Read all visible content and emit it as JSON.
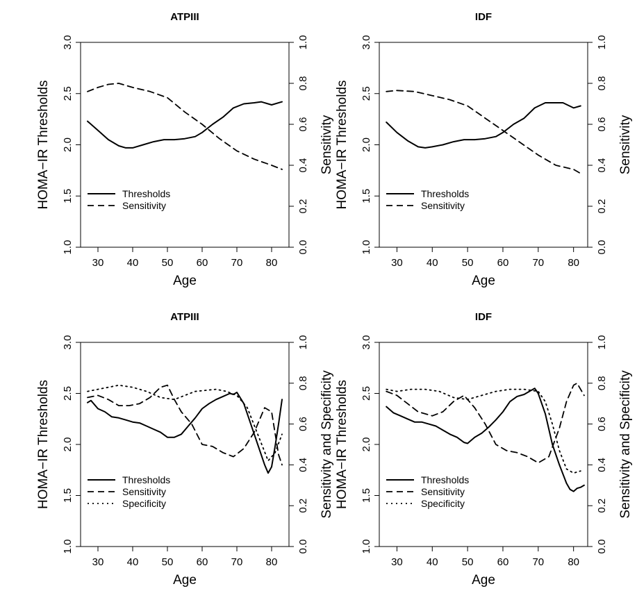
{
  "chart_data": [
    {
      "type": "line",
      "title": "ATPIII",
      "xlabel": "Age",
      "ylabel": "HOMA−IR Thresholds",
      "y2label": "Sensitivity",
      "xlim": [
        25,
        85
      ],
      "ylim": [
        1.0,
        3.0
      ],
      "y2lim": [
        0.0,
        1.0
      ],
      "xticks": [
        "30",
        "40",
        "50",
        "60",
        "70",
        "80"
      ],
      "yticks": [
        "1.0",
        "1.5",
        "2.0",
        "2.5",
        "3.0"
      ],
      "y2ticks": [
        "0.0",
        "0.2",
        "0.4",
        "0.6",
        "0.8",
        "1.0"
      ],
      "legend": "bottom-left",
      "grid": false,
      "series": [
        {
          "name": "Thresholds",
          "axis": "left",
          "style": "solid",
          "x": [
            27,
            30,
            33,
            36,
            38,
            40,
            43,
            46,
            49,
            52,
            55,
            58,
            60,
            63,
            66,
            69,
            72,
            75,
            77,
            80,
            83
          ],
          "y": [
            2.23,
            2.14,
            2.05,
            1.99,
            1.97,
            1.97,
            2.0,
            2.03,
            2.05,
            2.05,
            2.06,
            2.08,
            2.12,
            2.2,
            2.27,
            2.36,
            2.4,
            2.41,
            2.42,
            2.39,
            2.42
          ]
        },
        {
          "name": "Sensitivity",
          "axis": "right",
          "style": "dashed",
          "x": [
            27,
            30,
            33,
            36,
            40,
            45,
            50,
            55,
            60,
            65,
            70,
            75,
            80,
            83
          ],
          "y": [
            0.76,
            0.78,
            0.795,
            0.8,
            0.78,
            0.76,
            0.73,
            0.66,
            0.6,
            0.53,
            0.47,
            0.43,
            0.4,
            0.38
          ]
        }
      ]
    },
    {
      "type": "line",
      "title": "IDF",
      "xlabel": "Age",
      "ylabel": "HOMA−IR Thresholds",
      "y2label": "Sensitivity",
      "xlim": [
        25,
        84
      ],
      "ylim": [
        1.0,
        3.0
      ],
      "y2lim": [
        0.0,
        1.0
      ],
      "xticks": [
        "30",
        "40",
        "50",
        "60",
        "70",
        "80"
      ],
      "yticks": [
        "1.0",
        "1.5",
        "2.0",
        "2.5",
        "3.0"
      ],
      "y2ticks": [
        "0.0",
        "0.2",
        "0.4",
        "0.6",
        "0.8",
        "1.0"
      ],
      "legend": "bottom-left",
      "grid": false,
      "series": [
        {
          "name": "Thresholds",
          "axis": "left",
          "style": "solid",
          "x": [
            27,
            30,
            33,
            36,
            38,
            40,
            43,
            46,
            49,
            52,
            55,
            58,
            60,
            63,
            66,
            69,
            72,
            75,
            77,
            80,
            82
          ],
          "y": [
            2.22,
            2.12,
            2.04,
            1.98,
            1.97,
            1.98,
            2.0,
            2.03,
            2.05,
            2.05,
            2.06,
            2.08,
            2.12,
            2.2,
            2.26,
            2.36,
            2.41,
            2.41,
            2.41,
            2.36,
            2.38
          ]
        },
        {
          "name": "Sensitivity",
          "axis": "right",
          "style": "dashed",
          "x": [
            27,
            30,
            35,
            40,
            45,
            50,
            55,
            60,
            65,
            70,
            75,
            80,
            82
          ],
          "y": [
            0.76,
            0.765,
            0.76,
            0.74,
            0.72,
            0.69,
            0.63,
            0.57,
            0.51,
            0.45,
            0.4,
            0.38,
            0.36
          ]
        }
      ]
    },
    {
      "type": "line",
      "title": "ATPIII",
      "xlabel": "Age",
      "ylabel": "HOMA−IR Thresholds",
      "y2label": "Sensitivity and Specificity",
      "xlim": [
        25,
        85
      ],
      "ylim": [
        1.0,
        3.0
      ],
      "y2lim": [
        0.0,
        1.0
      ],
      "xticks": [
        "30",
        "40",
        "50",
        "60",
        "70",
        "80"
      ],
      "yticks": [
        "1.0",
        "1.5",
        "2.0",
        "2.5",
        "3.0"
      ],
      "y2ticks": [
        "0.0",
        "0.2",
        "0.4",
        "0.6",
        "0.8",
        "1.0"
      ],
      "legend": "bottom-left",
      "grid": false,
      "series": [
        {
          "name": "Thresholds",
          "axis": "left",
          "style": "solid",
          "x": [
            27,
            28,
            30,
            32,
            34,
            36,
            38,
            40,
            42,
            44,
            46,
            48,
            50,
            52,
            54,
            56,
            58,
            60,
            62,
            64,
            66,
            68,
            69,
            70,
            72,
            74,
            76,
            78,
            79,
            80,
            81,
            82,
            83
          ],
          "y": [
            2.41,
            2.43,
            2.35,
            2.32,
            2.27,
            2.26,
            2.24,
            2.22,
            2.21,
            2.18,
            2.15,
            2.12,
            2.07,
            2.07,
            2.1,
            2.18,
            2.26,
            2.35,
            2.4,
            2.44,
            2.47,
            2.5,
            2.49,
            2.51,
            2.4,
            2.2,
            2.0,
            1.8,
            1.72,
            1.78,
            1.98,
            2.2,
            2.44
          ]
        },
        {
          "name": "Sensitivity",
          "axis": "right",
          "style": "dashed",
          "x": [
            27,
            30,
            33,
            36,
            39,
            42,
            45,
            48,
            50,
            52,
            54,
            57,
            60,
            63,
            66,
            69,
            72,
            75,
            78,
            80,
            82,
            83
          ],
          "y": [
            0.73,
            0.74,
            0.72,
            0.69,
            0.69,
            0.7,
            0.73,
            0.78,
            0.79,
            0.72,
            0.66,
            0.6,
            0.5,
            0.49,
            0.46,
            0.44,
            0.48,
            0.56,
            0.68,
            0.66,
            0.45,
            0.4
          ]
        },
        {
          "name": "Specificity",
          "axis": "right",
          "style": "dotted",
          "x": [
            27,
            30,
            33,
            36,
            40,
            44,
            48,
            52,
            55,
            58,
            61,
            64,
            67,
            70,
            73,
            76,
            79,
            81,
            83
          ],
          "y": [
            0.76,
            0.77,
            0.78,
            0.79,
            0.78,
            0.76,
            0.73,
            0.72,
            0.74,
            0.76,
            0.765,
            0.77,
            0.76,
            0.74,
            0.68,
            0.55,
            0.42,
            0.46,
            0.55
          ]
        }
      ]
    },
    {
      "type": "line",
      "title": "IDF",
      "xlabel": "Age",
      "ylabel": "HOMA−IR Thresholds",
      "y2label": "Sensitivity and Specificity",
      "xlim": [
        25,
        84
      ],
      "ylim": [
        1.0,
        3.0
      ],
      "y2lim": [
        0.0,
        1.0
      ],
      "xticks": [
        "30",
        "40",
        "50",
        "60",
        "70",
        "80"
      ],
      "yticks": [
        "1.0",
        "1.5",
        "2.0",
        "2.5",
        "3.0"
      ],
      "y2ticks": [
        "0.0",
        "0.2",
        "0.4",
        "0.6",
        "0.8",
        "1.0"
      ],
      "legend": "bottom-left",
      "grid": false,
      "series": [
        {
          "name": "Thresholds",
          "axis": "left",
          "style": "solid",
          "x": [
            27,
            29,
            31,
            33,
            35,
            37,
            39,
            41,
            43,
            45,
            47,
            49,
            50,
            52,
            54,
            56,
            58,
            60,
            62,
            64,
            66,
            68,
            69,
            70,
            72,
            74,
            76,
            78,
            79,
            80,
            81,
            82,
            83
          ],
          "y": [
            2.37,
            2.31,
            2.28,
            2.25,
            2.22,
            2.22,
            2.2,
            2.18,
            2.14,
            2.1,
            2.07,
            2.02,
            2.01,
            2.07,
            2.11,
            2.17,
            2.24,
            2.32,
            2.42,
            2.47,
            2.49,
            2.53,
            2.55,
            2.5,
            2.3,
            2.0,
            1.8,
            1.62,
            1.56,
            1.54,
            1.57,
            1.58,
            1.6
          ]
        },
        {
          "name": "Sensitivity",
          "axis": "right",
          "style": "dashed",
          "x": [
            27,
            30,
            33,
            36,
            40,
            43,
            46,
            49,
            52,
            55,
            58,
            61,
            64,
            67,
            70,
            73,
            76,
            78,
            80,
            81,
            82,
            83
          ],
          "y": [
            0.76,
            0.74,
            0.7,
            0.66,
            0.64,
            0.66,
            0.71,
            0.74,
            0.68,
            0.6,
            0.5,
            0.47,
            0.46,
            0.44,
            0.41,
            0.44,
            0.58,
            0.71,
            0.79,
            0.8,
            0.77,
            0.74
          ]
        },
        {
          "name": "Specificity",
          "axis": "right",
          "style": "dotted",
          "x": [
            27,
            30,
            34,
            38,
            42,
            46,
            50,
            54,
            58,
            62,
            66,
            70,
            72,
            74,
            76,
            78,
            80,
            82
          ],
          "y": [
            0.77,
            0.76,
            0.77,
            0.77,
            0.76,
            0.73,
            0.72,
            0.74,
            0.76,
            0.77,
            0.77,
            0.76,
            0.71,
            0.6,
            0.47,
            0.38,
            0.36,
            0.37
          ]
        }
      ]
    }
  ]
}
